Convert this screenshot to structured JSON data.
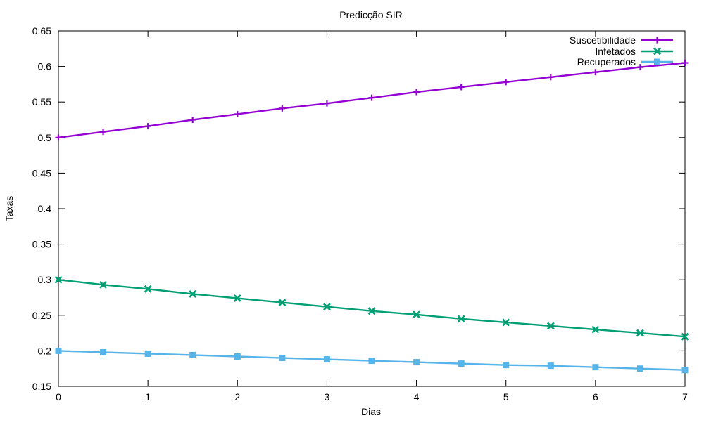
{
  "chart_data": {
    "type": "line",
    "title": "Predicção SIR",
    "xlabel": "Dias",
    "ylabel": "Taxas",
    "xlim": [
      0,
      7
    ],
    "ylim": [
      0.15,
      0.65
    ],
    "x_ticks": [
      0,
      1,
      2,
      3,
      4,
      5,
      6,
      7
    ],
    "x_tick_labels": [
      "0",
      "1",
      "2",
      "3",
      "4",
      "5",
      "6",
      "7"
    ],
    "y_ticks": [
      0.15,
      0.2,
      0.25,
      0.3,
      0.35,
      0.4,
      0.45,
      0.5,
      0.55,
      0.6,
      0.65
    ],
    "y_tick_labels": [
      "0.15",
      "0.2",
      "0.25",
      "0.3",
      "0.35",
      "0.4",
      "0.45",
      "0.5",
      "0.55",
      "0.6",
      "0.65"
    ],
    "grid": false,
    "legend_position": "top-right",
    "x": [
      0,
      0.5,
      1,
      1.5,
      2,
      2.5,
      3,
      3.5,
      4,
      4.5,
      5,
      5.5,
      6,
      6.5,
      7
    ],
    "series": [
      {
        "name": "Suscetibilidade",
        "color": "#9400d3",
        "marker": "plus",
        "values": [
          0.5,
          0.508,
          0.516,
          0.525,
          0.533,
          0.541,
          0.548,
          0.556,
          0.564,
          0.571,
          0.578,
          0.585,
          0.592,
          0.599,
          0.605
        ]
      },
      {
        "name": "Infetados",
        "color": "#009e73",
        "marker": "cross",
        "values": [
          0.3,
          0.293,
          0.287,
          0.28,
          0.274,
          0.268,
          0.262,
          0.256,
          0.251,
          0.245,
          0.24,
          0.235,
          0.23,
          0.225,
          0.22
        ]
      },
      {
        "name": "Recuperados",
        "color": "#56b4e9",
        "marker": "square",
        "values": [
          0.2,
          0.198,
          0.196,
          0.194,
          0.192,
          0.19,
          0.188,
          0.186,
          0.184,
          0.182,
          0.18,
          0.179,
          0.177,
          0.175,
          0.173
        ]
      }
    ]
  }
}
